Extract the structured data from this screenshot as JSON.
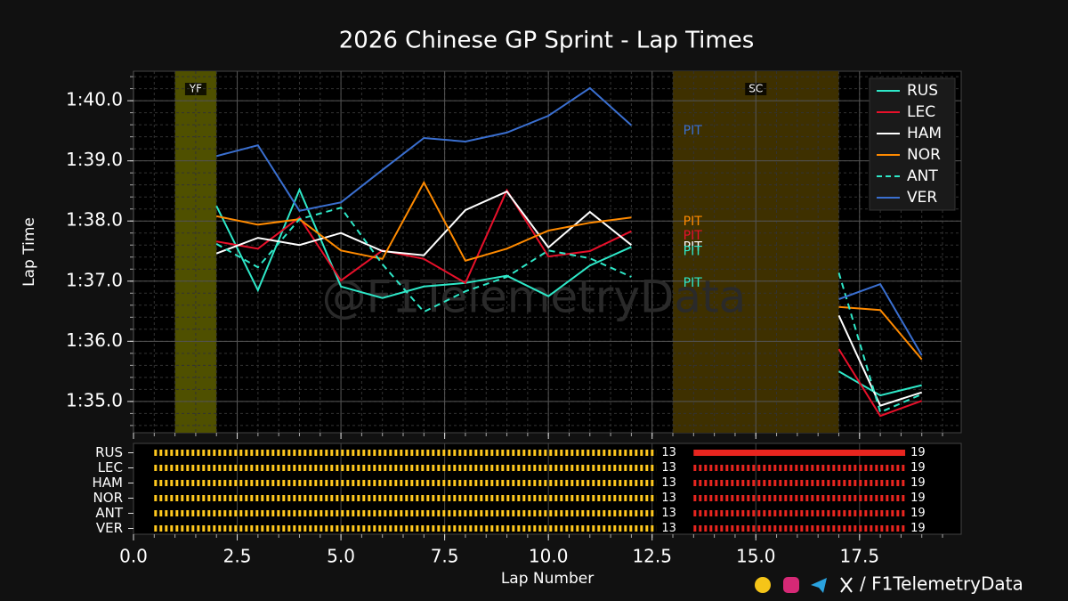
{
  "chart_data": {
    "type": "line",
    "title": "2026 Chinese GP Sprint - Lap Times",
    "xlabel": "Lap Number",
    "ylabel": "Lap Time",
    "watermark": "@F1TelemetryData",
    "footer": "/ F1TelemetryData",
    "x": [
      2,
      3,
      4,
      5,
      6,
      7,
      8,
      9,
      10,
      11,
      12,
      13,
      14,
      15,
      16,
      17,
      18,
      19
    ],
    "series": [
      {
        "name": "RUS",
        "color": "#2ee8c8",
        "dash": false,
        "values": [
          98.25,
          96.85,
          98.52,
          96.91,
          96.72,
          96.91,
          96.97,
          97.09,
          96.75,
          97.26,
          97.57,
          null,
          null,
          null,
          null,
          95.5,
          95.1,
          95.27
        ]
      },
      {
        "name": "LEC",
        "color": "#e8102a",
        "dash": false,
        "values": [
          97.66,
          97.54,
          98.06,
          97.01,
          97.51,
          97.37,
          96.97,
          98.51,
          97.41,
          97.5,
          97.83,
          null,
          null,
          null,
          null,
          95.87,
          94.76,
          95.01
        ]
      },
      {
        "name": "HAM",
        "color": "#ffffff",
        "dash": false,
        "values": [
          97.46,
          97.72,
          97.6,
          97.8,
          97.5,
          97.43,
          98.18,
          98.49,
          97.56,
          98.15,
          97.6,
          null,
          null,
          null,
          null,
          96.43,
          94.93,
          95.15
        ]
      },
      {
        "name": "NOR",
        "color": "#ff8a00",
        "dash": false,
        "values": [
          98.08,
          97.94,
          98.03,
          97.51,
          97.37,
          98.64,
          97.34,
          97.54,
          97.84,
          97.97,
          98.06,
          null,
          null,
          null,
          null,
          96.57,
          96.52,
          95.7
        ]
      },
      {
        "name": "ANT",
        "color": "#2ee8c8",
        "dash": true,
        "values": [
          97.62,
          97.23,
          98.03,
          98.22,
          97.28,
          96.49,
          96.83,
          97.07,
          97.51,
          97.38,
          97.07,
          null,
          null,
          null,
          null,
          97.14,
          94.82,
          95.12
        ]
      },
      {
        "name": "VER",
        "color": "#3a6fd0",
        "dash": false,
        "values": [
          99.08,
          99.26,
          98.17,
          98.31,
          98.85,
          99.38,
          99.32,
          99.47,
          99.75,
          100.21,
          99.59,
          null,
          null,
          null,
          null,
          96.7,
          96.95,
          95.77
        ]
      }
    ],
    "xlim": [
      0,
      19.95
    ],
    "ylim": [
      94.48,
      100.49
    ],
    "xticks": [
      {
        "value": 0,
        "label": "0.0"
      },
      2.5,
      {
        "value": 5,
        "label": "5.0"
      },
      7.5,
      {
        "value": 10,
        "label": "10.0"
      },
      12.5,
      {
        "value": 15,
        "label": "15.0"
      },
      17.5
    ],
    "yticks": [
      {
        "value": 95,
        "label": "1:35.0"
      },
      {
        "value": 96,
        "label": "1:36.0"
      },
      {
        "value": 97,
        "label": "1:37.0"
      },
      {
        "value": 98,
        "label": "1:38.0"
      },
      {
        "value": 99,
        "label": "1:39.0"
      },
      {
        "value": 100,
        "label": "1:40.0"
      }
    ],
    "grid": true,
    "minor_grid": true,
    "legend": "upper right",
    "shaded": [
      {
        "label": "YF",
        "start": 1,
        "end": 2,
        "color": "#4f5000"
      },
      {
        "label": "SC",
        "start": 13,
        "end": 17,
        "color": "#3e3000"
      }
    ],
    "annotations": [
      {
        "text": "PIT",
        "x": 13.25,
        "y": 99.5,
        "color": "#3a6fd0"
      },
      {
        "text": "PIT",
        "x": 13.25,
        "y": 97.99,
        "color": "#ff8a00"
      },
      {
        "text": "PIT",
        "x": 13.25,
        "y": 97.75,
        "color": "#e8102a"
      },
      {
        "text": "PIT",
        "x": 13.25,
        "y": 97.57,
        "color": "#ffffff"
      },
      {
        "text": "PIT",
        "x": 13.25,
        "y": 97.49,
        "color": "#2ee8c8"
      },
      {
        "text": "PIT",
        "x": 13.25,
        "y": 96.97,
        "color": "#2ee8c8"
      }
    ],
    "stints": [
      {
        "driver": "RUS",
        "parts": [
          {
            "start": 1,
            "end": 13,
            "color": "#ffc81e",
            "style": "dashed"
          },
          {
            "start": 14,
            "end": 19,
            "color": "#e8251f",
            "style": "solid"
          }
        ]
      },
      {
        "driver": "LEC",
        "parts": [
          {
            "start": 1,
            "end": 13,
            "color": "#ffc81e",
            "style": "dashed"
          },
          {
            "start": 14,
            "end": 19,
            "color": "#e8251f",
            "style": "dashed"
          }
        ]
      },
      {
        "driver": "HAM",
        "parts": [
          {
            "start": 1,
            "end": 13,
            "color": "#ffc81e",
            "style": "dashed"
          },
          {
            "start": 14,
            "end": 19,
            "color": "#e8251f",
            "style": "dashed"
          }
        ]
      },
      {
        "driver": "NOR",
        "parts": [
          {
            "start": 1,
            "end": 13,
            "color": "#ffc81e",
            "style": "dashed"
          },
          {
            "start": 14,
            "end": 19,
            "color": "#e8251f",
            "style": "dashed"
          }
        ]
      },
      {
        "driver": "ANT",
        "parts": [
          {
            "start": 1,
            "end": 13,
            "color": "#ffc81e",
            "style": "dashed"
          },
          {
            "start": 14,
            "end": 19,
            "color": "#e8251f",
            "style": "dashed"
          }
        ]
      },
      {
        "driver": "VER",
        "parts": [
          {
            "start": 1,
            "end": 13,
            "color": "#ffc81e",
            "style": "dashed"
          },
          {
            "start": 14,
            "end": 19,
            "color": "#e8251f",
            "style": "dashed"
          }
        ]
      }
    ]
  }
}
